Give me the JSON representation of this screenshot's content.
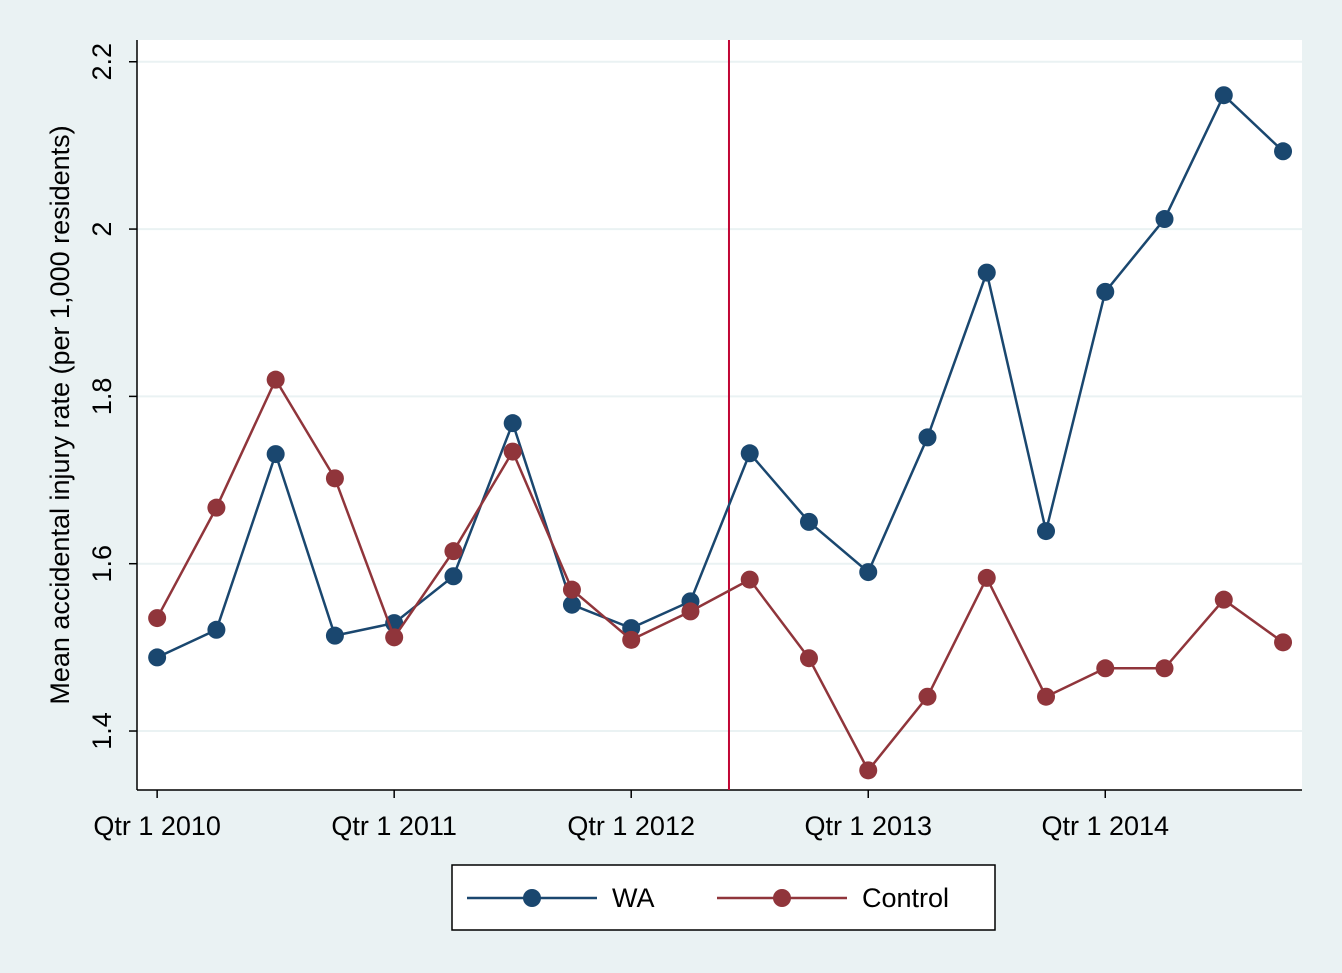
{
  "chart_data": {
    "type": "line",
    "y_label": "Mean accidental injury rate (per 1,000 residents)",
    "x": [
      0,
      1,
      2,
      3,
      4,
      5,
      6,
      7,
      8,
      9,
      10,
      11,
      12,
      13,
      14,
      15,
      16,
      17,
      18,
      19
    ],
    "series": [
      {
        "name": "WA",
        "color": "#1a476f",
        "values": [
          1.488,
          1.521,
          1.731,
          1.514,
          1.529,
          1.585,
          1.768,
          1.551,
          1.523,
          1.555,
          1.732,
          1.65,
          1.59,
          1.751,
          1.948,
          1.639,
          1.925,
          2.012,
          2.16,
          2.093
        ]
      },
      {
        "name": "Control",
        "color": "#90353b",
        "values": [
          1.535,
          1.667,
          1.82,
          1.702,
          1.512,
          1.615,
          1.734,
          1.569,
          1.509,
          1.543,
          1.581,
          1.487,
          1.353,
          1.441,
          1.583,
          1.441,
          1.475,
          1.475,
          1.557,
          1.506
        ]
      }
    ],
    "reference_line": {
      "x": 9.65,
      "color": "#c10534"
    },
    "xlim": [
      -0.34,
      19.32
    ],
    "xticks": [
      {
        "value": 0,
        "label": "Qtr 1 2010"
      },
      {
        "value": 4,
        "label": "Qtr 1 2011"
      },
      {
        "value": 8,
        "label": "Qtr 1 2012"
      },
      {
        "value": 12,
        "label": "Qtr 1 2013"
      },
      {
        "value": 16,
        "label": "Qtr 1 2014"
      }
    ],
    "ylim": [
      1.3295,
      2.226
    ],
    "yticks": [
      1.4,
      1.6,
      1.8,
      2,
      2.2
    ],
    "grid": true,
    "legend_position": "bottom"
  }
}
